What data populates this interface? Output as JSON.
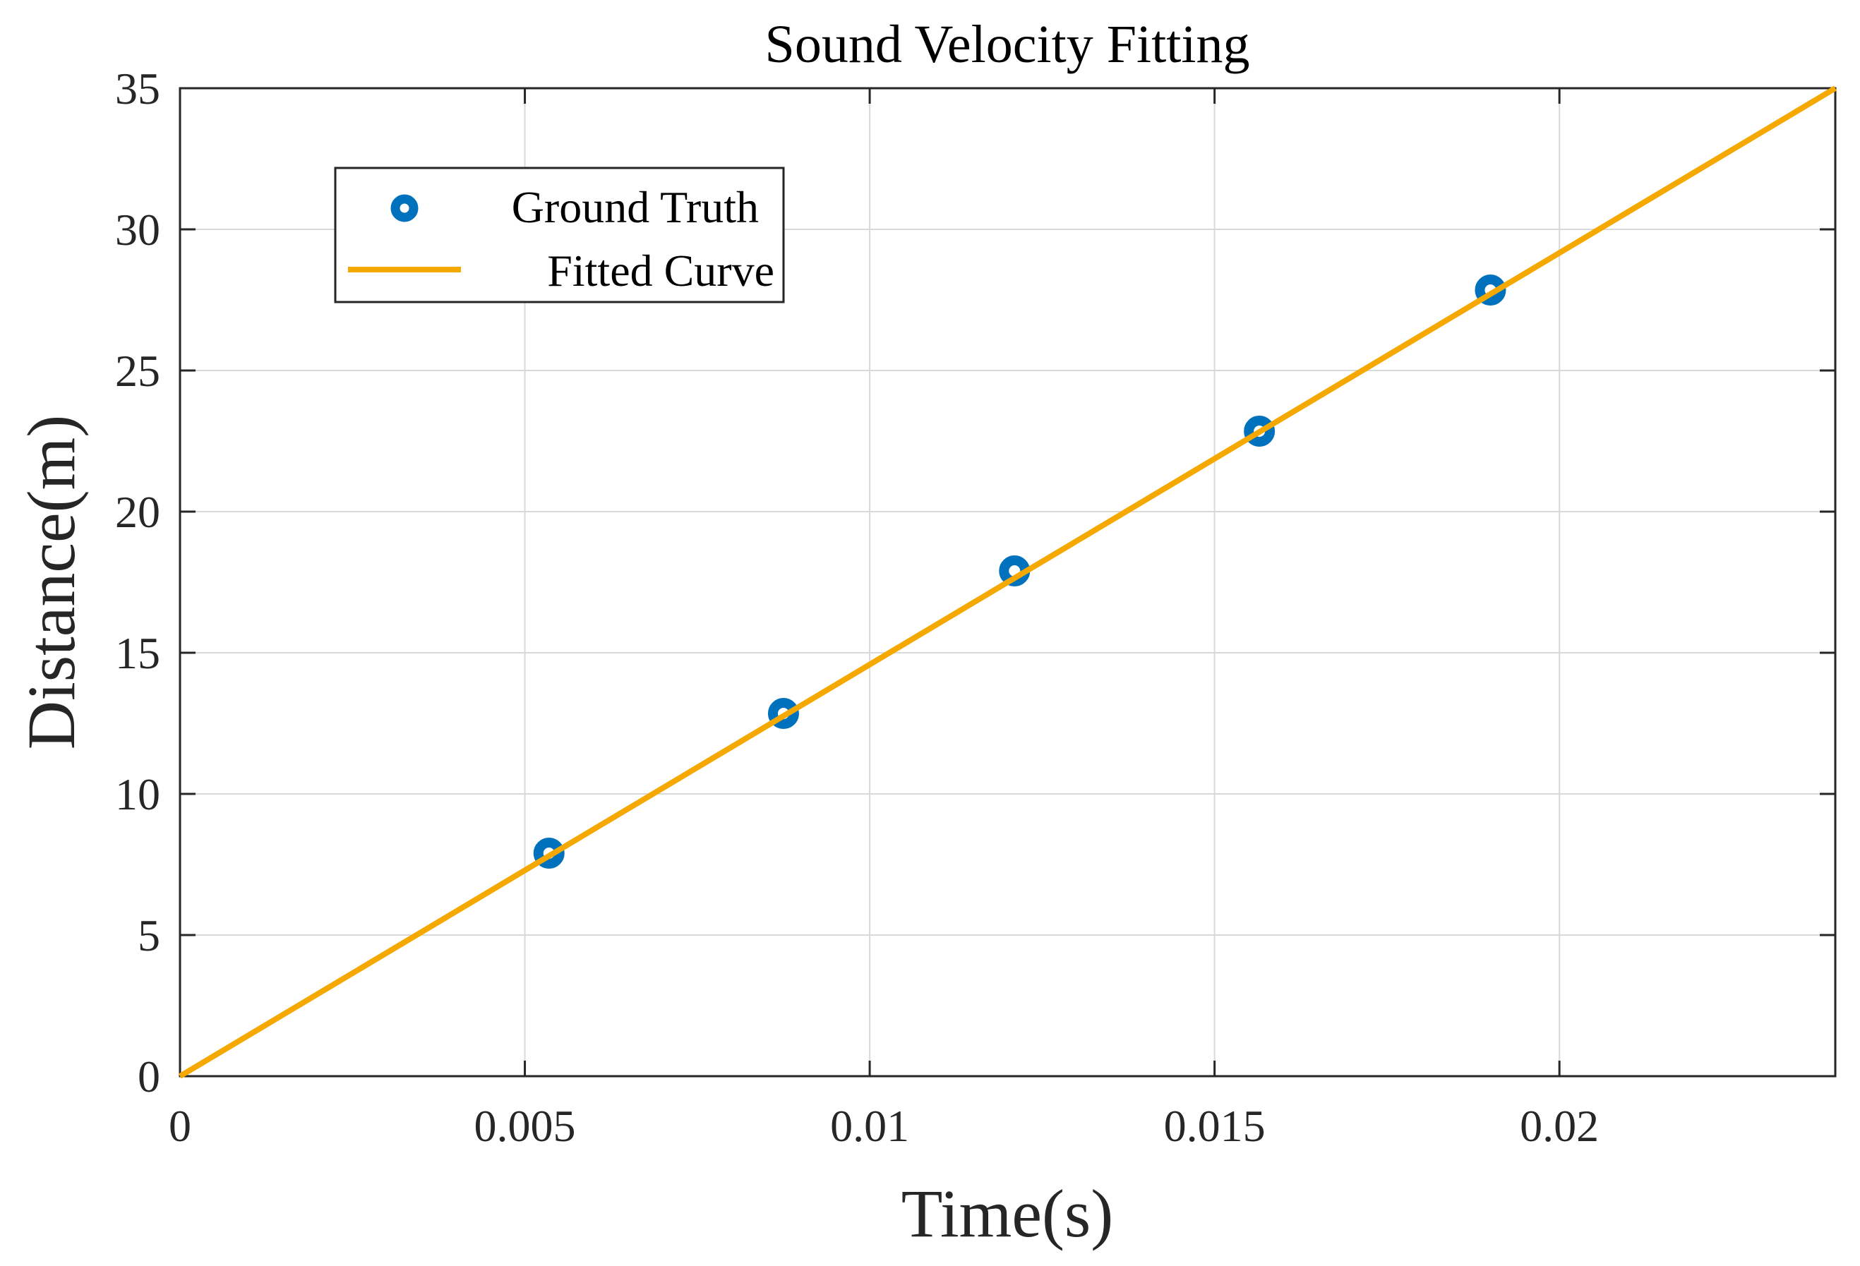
{
  "chart_data": {
    "type": "scatter",
    "title": "Sound Velocity Fitting",
    "xlabel": "Time(s)",
    "ylabel": "Distance(m)",
    "xlim": [
      0,
      0.024
    ],
    "ylim": [
      0,
      35
    ],
    "x_ticks": [
      0,
      0.005,
      0.01,
      0.015,
      0.02
    ],
    "x_tick_labels": [
      "0",
      "0.005",
      "0.01",
      "0.015",
      "0.02"
    ],
    "y_ticks": [
      0,
      5,
      10,
      15,
      20,
      25,
      30,
      35
    ],
    "y_tick_labels": [
      "0",
      "5",
      "10",
      "15",
      "20",
      "25",
      "30",
      "35"
    ],
    "grid": true,
    "legend_position": "top-left",
    "series": [
      {
        "name": "Ground Truth",
        "kind": "markers",
        "color": "#0072BD",
        "x": [
          0.00535,
          0.00875,
          0.0121,
          0.01565,
          0.019
        ],
        "y": [
          7.9,
          12.85,
          17.9,
          22.85,
          27.85
        ]
      },
      {
        "name": "Fitted Curve",
        "kind": "line",
        "color": "#F5A800",
        "x": [
          0,
          0.024
        ],
        "y": [
          0,
          35
        ]
      }
    ]
  }
}
